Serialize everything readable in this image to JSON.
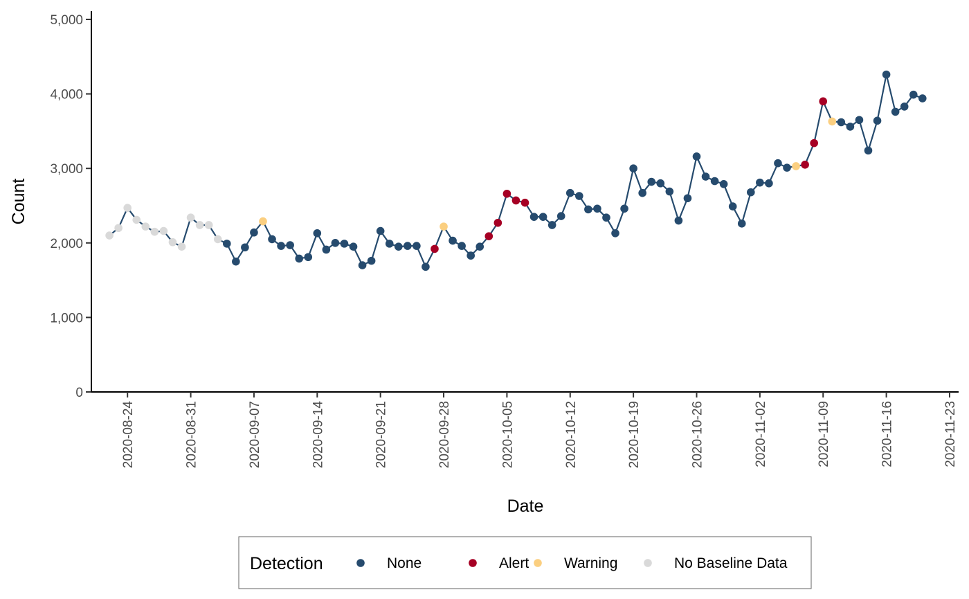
{
  "chart_data": {
    "type": "line",
    "xlabel": "Date",
    "ylabel": "Count",
    "ylim": [
      0,
      5000
    ],
    "xlim": [
      "2020-08-20",
      "2020-11-24"
    ],
    "y_ticks": [
      0,
      1000,
      2000,
      3000,
      4000,
      5000
    ],
    "y_tick_labels": [
      "0",
      "1,000",
      "2,000",
      "3,000",
      "4,000",
      "5,000"
    ],
    "x_ticks": [
      "2020-08-24",
      "2020-08-31",
      "2020-09-07",
      "2020-09-14",
      "2020-09-21",
      "2020-09-28",
      "2020-10-05",
      "2020-10-12",
      "2020-10-19",
      "2020-10-26",
      "2020-11-02",
      "2020-11-09",
      "2020-11-16",
      "2020-11-23"
    ],
    "grid": false,
    "line_color": "#264b6e",
    "legend": {
      "position": "bottom",
      "title": "Detection",
      "entries": [
        {
          "key": "none",
          "label": "None",
          "color": "#264b6e"
        },
        {
          "key": "alert",
          "label": "Alert",
          "color": "#a60024"
        },
        {
          "key": "warning",
          "label": "Warning",
          "color": "#fbcf80"
        },
        {
          "key": "nobase",
          "label": "No Baseline Data",
          "color": "#d9d9d9"
        }
      ]
    },
    "points": [
      {
        "date": "2020-08-22",
        "value": 2100,
        "status": "nobase"
      },
      {
        "date": "2020-08-23",
        "value": 2200,
        "status": "nobase"
      },
      {
        "date": "2020-08-24",
        "value": 2470,
        "status": "nobase"
      },
      {
        "date": "2020-08-25",
        "value": 2310,
        "status": "nobase"
      },
      {
        "date": "2020-08-26",
        "value": 2220,
        "status": "nobase"
      },
      {
        "date": "2020-08-27",
        "value": 2150,
        "status": "nobase"
      },
      {
        "date": "2020-08-28",
        "value": 2160,
        "status": "nobase"
      },
      {
        "date": "2020-08-29",
        "value": 2010,
        "status": "nobase"
      },
      {
        "date": "2020-08-30",
        "value": 1950,
        "status": "nobase"
      },
      {
        "date": "2020-08-31",
        "value": 2340,
        "status": "nobase"
      },
      {
        "date": "2020-09-01",
        "value": 2240,
        "status": "nobase"
      },
      {
        "date": "2020-09-02",
        "value": 2240,
        "status": "nobase"
      },
      {
        "date": "2020-09-03",
        "value": 2050,
        "status": "nobase"
      },
      {
        "date": "2020-09-04",
        "value": 1990,
        "status": "none"
      },
      {
        "date": "2020-09-05",
        "value": 1750,
        "status": "none"
      },
      {
        "date": "2020-09-06",
        "value": 1940,
        "status": "none"
      },
      {
        "date": "2020-09-07",
        "value": 2140,
        "status": "none"
      },
      {
        "date": "2020-09-08",
        "value": 2290,
        "status": "warning"
      },
      {
        "date": "2020-09-09",
        "value": 2050,
        "status": "none"
      },
      {
        "date": "2020-09-10",
        "value": 1960,
        "status": "none"
      },
      {
        "date": "2020-09-11",
        "value": 1970,
        "status": "none"
      },
      {
        "date": "2020-09-12",
        "value": 1790,
        "status": "none"
      },
      {
        "date": "2020-09-13",
        "value": 1810,
        "status": "none"
      },
      {
        "date": "2020-09-14",
        "value": 2130,
        "status": "none"
      },
      {
        "date": "2020-09-15",
        "value": 1910,
        "status": "none"
      },
      {
        "date": "2020-09-16",
        "value": 2000,
        "status": "none"
      },
      {
        "date": "2020-09-17",
        "value": 1990,
        "status": "none"
      },
      {
        "date": "2020-09-18",
        "value": 1950,
        "status": "none"
      },
      {
        "date": "2020-09-19",
        "value": 1700,
        "status": "none"
      },
      {
        "date": "2020-09-20",
        "value": 1760,
        "status": "none"
      },
      {
        "date": "2020-09-21",
        "value": 2160,
        "status": "none"
      },
      {
        "date": "2020-09-22",
        "value": 1990,
        "status": "none"
      },
      {
        "date": "2020-09-23",
        "value": 1950,
        "status": "none"
      },
      {
        "date": "2020-09-24",
        "value": 1960,
        "status": "none"
      },
      {
        "date": "2020-09-25",
        "value": 1960,
        "status": "none"
      },
      {
        "date": "2020-09-26",
        "value": 1680,
        "status": "none"
      },
      {
        "date": "2020-09-27",
        "value": 1920,
        "status": "alert"
      },
      {
        "date": "2020-09-28",
        "value": 2220,
        "status": "warning"
      },
      {
        "date": "2020-09-29",
        "value": 2030,
        "status": "none"
      },
      {
        "date": "2020-09-30",
        "value": 1960,
        "status": "none"
      },
      {
        "date": "2020-10-01",
        "value": 1830,
        "status": "none"
      },
      {
        "date": "2020-10-02",
        "value": 1950,
        "status": "none"
      },
      {
        "date": "2020-10-03",
        "value": 2090,
        "status": "alert"
      },
      {
        "date": "2020-10-04",
        "value": 2270,
        "status": "alert"
      },
      {
        "date": "2020-10-05",
        "value": 2660,
        "status": "alert"
      },
      {
        "date": "2020-10-06",
        "value": 2570,
        "status": "alert"
      },
      {
        "date": "2020-10-07",
        "value": 2540,
        "status": "alert"
      },
      {
        "date": "2020-10-08",
        "value": 2350,
        "status": "none"
      },
      {
        "date": "2020-10-09",
        "value": 2350,
        "status": "none"
      },
      {
        "date": "2020-10-10",
        "value": 2240,
        "status": "none"
      },
      {
        "date": "2020-10-11",
        "value": 2360,
        "status": "none"
      },
      {
        "date": "2020-10-12",
        "value": 2670,
        "status": "none"
      },
      {
        "date": "2020-10-13",
        "value": 2630,
        "status": "none"
      },
      {
        "date": "2020-10-14",
        "value": 2450,
        "status": "none"
      },
      {
        "date": "2020-10-15",
        "value": 2460,
        "status": "none"
      },
      {
        "date": "2020-10-16",
        "value": 2340,
        "status": "none"
      },
      {
        "date": "2020-10-17",
        "value": 2130,
        "status": "none"
      },
      {
        "date": "2020-10-18",
        "value": 2460,
        "status": "none"
      },
      {
        "date": "2020-10-19",
        "value": 3000,
        "status": "none"
      },
      {
        "date": "2020-10-20",
        "value": 2670,
        "status": "none"
      },
      {
        "date": "2020-10-21",
        "value": 2820,
        "status": "none"
      },
      {
        "date": "2020-10-22",
        "value": 2800,
        "status": "none"
      },
      {
        "date": "2020-10-23",
        "value": 2690,
        "status": "none"
      },
      {
        "date": "2020-10-24",
        "value": 2300,
        "status": "none"
      },
      {
        "date": "2020-10-25",
        "value": 2600,
        "status": "none"
      },
      {
        "date": "2020-10-26",
        "value": 3160,
        "status": "none"
      },
      {
        "date": "2020-10-27",
        "value": 2890,
        "status": "none"
      },
      {
        "date": "2020-10-28",
        "value": 2830,
        "status": "none"
      },
      {
        "date": "2020-10-29",
        "value": 2790,
        "status": "none"
      },
      {
        "date": "2020-10-30",
        "value": 2490,
        "status": "none"
      },
      {
        "date": "2020-10-31",
        "value": 2260,
        "status": "none"
      },
      {
        "date": "2020-11-01",
        "value": 2680,
        "status": "none"
      },
      {
        "date": "2020-11-02",
        "value": 2810,
        "status": "none"
      },
      {
        "date": "2020-11-03",
        "value": 2800,
        "status": "none"
      },
      {
        "date": "2020-11-04",
        "value": 3070,
        "status": "none"
      },
      {
        "date": "2020-11-05",
        "value": 3010,
        "status": "none"
      },
      {
        "date": "2020-11-06",
        "value": 3030,
        "status": "warning"
      },
      {
        "date": "2020-11-07",
        "value": 3050,
        "status": "alert"
      },
      {
        "date": "2020-11-08",
        "value": 3340,
        "status": "alert"
      },
      {
        "date": "2020-11-09",
        "value": 3900,
        "status": "alert"
      },
      {
        "date": "2020-11-10",
        "value": 3630,
        "status": "warning"
      },
      {
        "date": "2020-11-11",
        "value": 3620,
        "status": "none"
      },
      {
        "date": "2020-11-12",
        "value": 3560,
        "status": "none"
      },
      {
        "date": "2020-11-13",
        "value": 3650,
        "status": "none"
      },
      {
        "date": "2020-11-14",
        "value": 3240,
        "status": "none"
      },
      {
        "date": "2020-11-15",
        "value": 3640,
        "status": "none"
      },
      {
        "date": "2020-11-16",
        "value": 4260,
        "status": "none"
      },
      {
        "date": "2020-11-17",
        "value": 3760,
        "status": "none"
      },
      {
        "date": "2020-11-18",
        "value": 3830,
        "status": "none"
      },
      {
        "date": "2020-11-19",
        "value": 3990,
        "status": "none"
      },
      {
        "date": "2020-11-20",
        "value": 3940,
        "status": "none"
      }
    ]
  }
}
